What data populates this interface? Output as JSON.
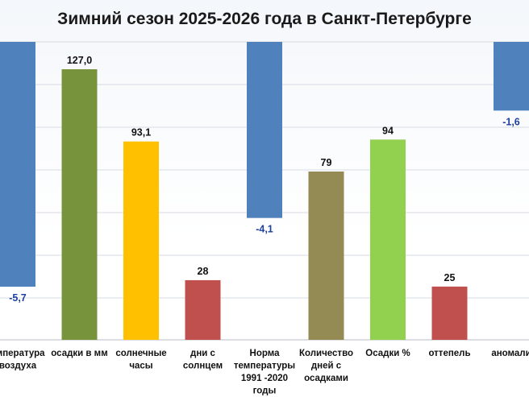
{
  "title": "Зимний сезон 2025-2026 года в Санкт-Петербурге",
  "chart_data": {
    "type": "bar",
    "title": "Зимний сезон 2025-2026 года в Санкт-Петербурге",
    "categories": [
      [
        "емпература",
        "воздуха"
      ],
      [
        "осадки в мм"
      ],
      [
        "солнечные",
        "часы"
      ],
      [
        "дни с",
        "солнцем"
      ],
      [
        "Норма",
        "температуры",
        "1991 -2020",
        "годы"
      ],
      [
        "Количество",
        "дней с",
        "осадками"
      ],
      [
        "Осадки %"
      ],
      [
        "оттепель"
      ],
      [
        "аномали"
      ]
    ],
    "values": [
      -5.7,
      127.0,
      93.1,
      28,
      -4.1,
      79,
      94,
      25,
      -1.6
    ],
    "value_labels": [
      "-5,7",
      "127,0",
      "93,1",
      "28",
      "-4,1",
      "79",
      "94",
      "25",
      "-1,6"
    ],
    "colors": [
      "#4f81bd",
      "#77933c",
      "#ffc000",
      "#c0504d",
      "#4f81bd",
      "#948a54",
      "#92d050",
      "#c0504d",
      "#4f81bd"
    ],
    "negative_label_color": "#1f3f9f",
    "positive_label_color": "#111111",
    "grid": true
  }
}
